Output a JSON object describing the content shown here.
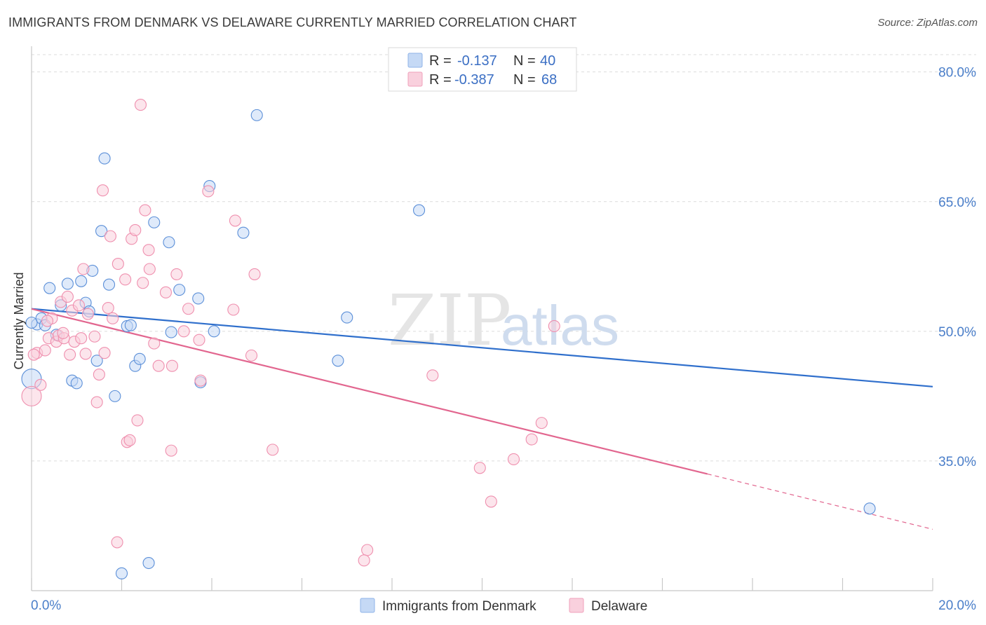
{
  "header": {
    "title": "IMMIGRANTS FROM DENMARK VS DELAWARE CURRENTLY MARRIED CORRELATION CHART",
    "source": "Source: ZipAtlas.com"
  },
  "watermark": {
    "zip": "ZIP",
    "atlas": "atlas"
  },
  "legend": {
    "rows": [
      {
        "r_label": "R =",
        "r_value": "-0.137",
        "n_label": "N =",
        "n_value": "40",
        "color": "#8fb3e8",
        "fill": "#c5d9f5"
      },
      {
        "r_label": "R =",
        "r_value": "-0.387",
        "n_label": "N =",
        "n_value": "68",
        "color": "#f0a0bb",
        "fill": "#f9d0dd"
      }
    ]
  },
  "bottom_legend": {
    "items": [
      {
        "label": "Immigrants from Denmark",
        "color": "#8fb3e8",
        "fill": "#c5d9f5"
      },
      {
        "label": "Delaware",
        "color": "#f0a0bb",
        "fill": "#f9d0dd"
      }
    ]
  },
  "chart_data": {
    "type": "scatter",
    "title": "IMMIGRANTS FROM DENMARK VS DELAWARE CURRENTLY MARRIED CORRELATION CHART",
    "xlabel": "",
    "ylabel": "Currently Married",
    "xlim": [
      0,
      20
    ],
    "ylim": [
      20,
      82
    ],
    "x_tick_labels": [
      "0.0%",
      "20.0%"
    ],
    "y_ticks": [
      35,
      50,
      65,
      80
    ],
    "y_tick_labels": [
      "35.0%",
      "50.0%",
      "65.0%",
      "80.0%"
    ],
    "grid": true,
    "legend_placement": "top-center",
    "series": [
      {
        "name": "Immigrants from Denmark",
        "color": "#5b8fd8",
        "fill": "#c5d9f5",
        "trend": {
          "x": [
            0,
            20
          ],
          "y": [
            52.6,
            43.6
          ],
          "color": "#2f6fcc"
        },
        "points": [
          [
            0.0,
            44.5
          ],
          [
            0.12,
            50.8
          ],
          [
            0.22,
            51.5
          ],
          [
            0.3,
            50.7
          ],
          [
            0.4,
            55.0
          ],
          [
            0.55,
            49.6
          ],
          [
            0.65,
            53.0
          ],
          [
            0.8,
            55.5
          ],
          [
            0.9,
            44.3
          ],
          [
            1.0,
            44.0
          ],
          [
            1.1,
            55.8
          ],
          [
            1.2,
            53.3
          ],
          [
            1.28,
            52.3
          ],
          [
            1.35,
            57.0
          ],
          [
            1.45,
            46.6
          ],
          [
            1.55,
            61.6
          ],
          [
            1.62,
            70.0
          ],
          [
            1.72,
            55.4
          ],
          [
            1.85,
            42.5
          ],
          [
            2.0,
            22.0
          ],
          [
            2.12,
            50.6
          ],
          [
            2.2,
            50.7
          ],
          [
            2.3,
            46.0
          ],
          [
            2.4,
            46.8
          ],
          [
            2.6,
            23.2
          ],
          [
            2.72,
            62.6
          ],
          [
            3.05,
            60.3
          ],
          [
            3.28,
            54.8
          ],
          [
            3.1,
            49.9
          ],
          [
            3.7,
            53.8
          ],
          [
            3.75,
            44.1
          ],
          [
            3.95,
            66.8
          ],
          [
            4.05,
            50.0
          ],
          [
            4.7,
            61.4
          ],
          [
            5.0,
            75.0
          ],
          [
            7.0,
            51.6
          ],
          [
            6.8,
            46.6
          ],
          [
            8.6,
            64.0
          ],
          [
            18.6,
            29.5
          ],
          [
            0.0,
            51.0
          ]
        ]
      },
      {
        "name": "Delaware",
        "color": "#ef8fae",
        "fill": "#f9d0dd",
        "trend": {
          "x": [
            0,
            15
          ],
          "y": [
            52.6,
            33.5
          ],
          "color": "#e2668f"
        },
        "trend_dashed": {
          "x": [
            15,
            20
          ],
          "y": [
            33.5,
            27.1
          ],
          "color": "#e2668f"
        },
        "points": [
          [
            0.0,
            42.5
          ],
          [
            0.12,
            47.5
          ],
          [
            0.2,
            43.8
          ],
          [
            0.3,
            47.8
          ],
          [
            0.38,
            49.2
          ],
          [
            0.45,
            51.5
          ],
          [
            0.55,
            48.8
          ],
          [
            0.6,
            49.5
          ],
          [
            0.65,
            53.4
          ],
          [
            0.72,
            49.2
          ],
          [
            0.8,
            54.0
          ],
          [
            0.85,
            47.3
          ],
          [
            0.9,
            52.4
          ],
          [
            0.95,
            48.8
          ],
          [
            1.05,
            53.0
          ],
          [
            1.1,
            49.2
          ],
          [
            1.15,
            57.2
          ],
          [
            1.2,
            47.4
          ],
          [
            1.25,
            52.0
          ],
          [
            1.4,
            49.4
          ],
          [
            1.45,
            41.8
          ],
          [
            1.5,
            45.0
          ],
          [
            1.58,
            66.3
          ],
          [
            1.62,
            47.5
          ],
          [
            1.7,
            52.7
          ],
          [
            1.75,
            61.0
          ],
          [
            1.8,
            51.5
          ],
          [
            1.9,
            25.6
          ],
          [
            1.92,
            57.8
          ],
          [
            2.08,
            56.0
          ],
          [
            2.12,
            37.2
          ],
          [
            2.18,
            37.4
          ],
          [
            2.22,
            60.7
          ],
          [
            2.3,
            61.7
          ],
          [
            2.35,
            39.7
          ],
          [
            2.42,
            76.2
          ],
          [
            2.47,
            55.6
          ],
          [
            2.52,
            64.0
          ],
          [
            2.6,
            59.4
          ],
          [
            2.62,
            57.2
          ],
          [
            2.72,
            48.6
          ],
          [
            2.82,
            46.0
          ],
          [
            2.98,
            54.5
          ],
          [
            3.1,
            36.2
          ],
          [
            3.12,
            46.0
          ],
          [
            3.22,
            56.6
          ],
          [
            3.38,
            50.0
          ],
          [
            3.48,
            52.6
          ],
          [
            3.72,
            49.0
          ],
          [
            3.75,
            44.3
          ],
          [
            3.92,
            66.2
          ],
          [
            4.52,
            62.8
          ],
          [
            4.48,
            52.5
          ],
          [
            4.88,
            47.2
          ],
          [
            4.95,
            56.6
          ],
          [
            5.35,
            36.3
          ],
          [
            7.45,
            24.7
          ],
          [
            7.38,
            23.5
          ],
          [
            8.9,
            44.9
          ],
          [
            9.95,
            34.2
          ],
          [
            10.2,
            30.3
          ],
          [
            10.7,
            35.2
          ],
          [
            11.1,
            37.5
          ],
          [
            11.32,
            39.4
          ],
          [
            11.6,
            50.6
          ],
          [
            0.05,
            47.3
          ],
          [
            0.35,
            51.2
          ],
          [
            0.7,
            49.8
          ]
        ]
      }
    ]
  }
}
